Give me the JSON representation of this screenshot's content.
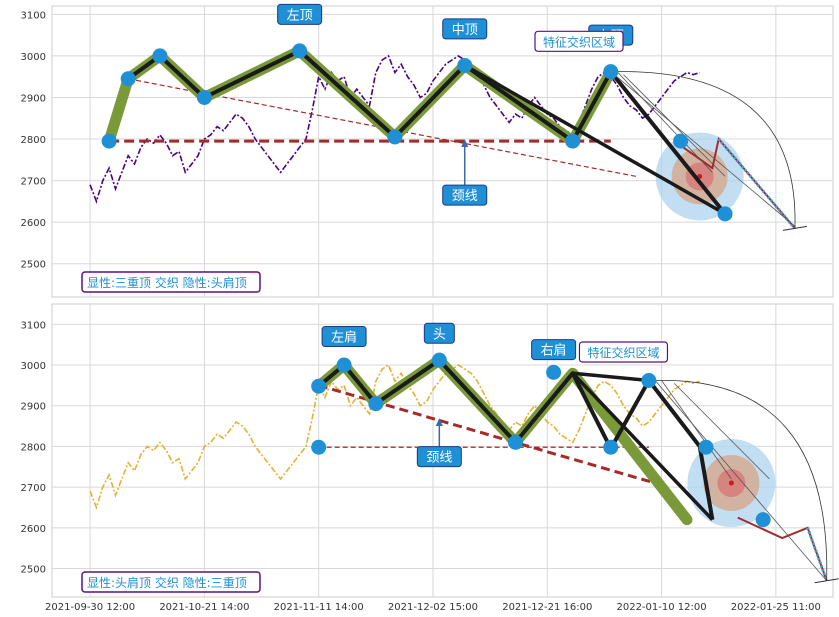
{
  "chart_data": [
    {
      "type": "line",
      "ylim": [
        2420,
        3120
      ],
      "yticks": [
        2500,
        2600,
        2700,
        2800,
        2900,
        3000,
        3100
      ],
      "grid": true,
      "price_color": "#4b0082",
      "price": [
        2690,
        2650,
        2700,
        2730,
        2680,
        2720,
        2760,
        2740,
        2780,
        2800,
        2790,
        2810,
        2790,
        2760,
        2770,
        2720,
        2740,
        2760,
        2800,
        2810,
        2830,
        2820,
        2840,
        2860,
        2850,
        2830,
        2800,
        2780,
        2760,
        2740,
        2720,
        2740,
        2760,
        2780,
        2800,
        2870,
        2950,
        2920,
        2960,
        2940,
        2950,
        2900,
        2920,
        2900,
        2880,
        2960,
        2990,
        3000,
        2960,
        2980,
        2950,
        2930,
        2900,
        2910,
        2940,
        2960,
        2980,
        2990,
        3000,
        2990,
        2980,
        2960,
        2930,
        2900,
        2880,
        2860,
        2840,
        2860,
        2850,
        2880,
        2900,
        2880,
        2860,
        2850,
        2830,
        2820,
        2810,
        2840,
        2880,
        2920,
        2950,
        2960,
        2950,
        2930,
        2900,
        2880,
        2870,
        2850,
        2860,
        2880,
        2900,
        2920,
        2940,
        2950,
        2960,
        2955,
        2960
      ],
      "pattern_line": [
        [
          3,
          2795
        ],
        [
          6,
          2945
        ],
        [
          11,
          3000
        ],
        [
          18,
          2900
        ],
        [
          33,
          3012
        ],
        [
          48,
          2805
        ],
        [
          59,
          2977
        ],
        [
          76,
          2795
        ],
        [
          82,
          2962
        ]
      ],
      "black_legs": [
        [
          6,
          2945
        ],
        [
          11,
          3000
        ],
        [
          18,
          2900
        ],
        [
          33,
          3012
        ],
        [
          48,
          2805
        ],
        [
          59,
          2977
        ],
        [
          76,
          2795
        ],
        [
          82,
          2962
        ],
        [
          100,
          2620
        ]
      ],
      "black_extra": [
        [
          [
            59,
            2977
          ],
          [
            100,
            2620
          ]
        ]
      ],
      "pattern_points": [
        [
          3,
          2795
        ],
        [
          6,
          2945
        ],
        [
          11,
          3000
        ],
        [
          18,
          2900
        ],
        [
          33,
          3012
        ],
        [
          48,
          2805
        ],
        [
          59,
          2977
        ],
        [
          76,
          2795
        ],
        [
          82,
          2962
        ],
        [
          93,
          2795
        ],
        [
          100,
          2620
        ]
      ],
      "neckline": {
        "y": 2795,
        "x_from": 3,
        "x_to": 82,
        "style": "bold"
      },
      "trend_line": [
        [
          6,
          2945
        ],
        [
          86,
          2710
        ]
      ],
      "forecast_main": [
        [
          92,
          2795
        ],
        [
          98,
          2730
        ],
        [
          99,
          2800
        ],
        [
          111,
          2585
        ]
      ],
      "forecast_fan": [
        [
          [
            83,
            2962
          ],
          [
            98,
            2720
          ]
        ],
        [
          [
            84,
            2955
          ],
          [
            100,
            2710
          ]
        ],
        [
          [
            82,
            2962
          ],
          [
            111,
            2590
          ]
        ]
      ],
      "forecast_arc": [
        [
          82,
          2962
        ],
        [
          111,
          2585
        ]
      ],
      "target_circle": {
        "x": 96,
        "y": 2710
      },
      "labels": [
        {
          "text": "左顶",
          "x": 33,
          "y": 3100,
          "arrow_to": 3012
        },
        {
          "text": "中顶",
          "x": 59,
          "y": 3065,
          "arrow_to": 2977
        },
        {
          "text": "右顶",
          "x": 82,
          "y": 3050,
          "arrow_to": 2962
        },
        {
          "text": "颈线",
          "x": 59,
          "y": 2665,
          "arrow_to": 2800,
          "arrow_up": true
        }
      ],
      "feature_label": {
        "text": "特征交织区域",
        "x": 77,
        "y": 3035
      },
      "status": "显性:三重顶 交织 隐性:头肩顶"
    },
    {
      "type": "line",
      "ylim": [
        2430,
        3150
      ],
      "yticks": [
        2500,
        2600,
        2700,
        2800,
        2900,
        3000,
        3100
      ],
      "grid": true,
      "price_color": "#e6b032",
      "price": [
        2690,
        2650,
        2700,
        2730,
        2680,
        2720,
        2760,
        2740,
        2780,
        2800,
        2790,
        2810,
        2790,
        2760,
        2770,
        2720,
        2740,
        2760,
        2800,
        2810,
        2830,
        2820,
        2840,
        2860,
        2850,
        2830,
        2800,
        2780,
        2760,
        2740,
        2720,
        2740,
        2760,
        2780,
        2800,
        2870,
        2950,
        2920,
        2960,
        2940,
        2950,
        2900,
        2920,
        2900,
        2880,
        2960,
        2990,
        3000,
        2960,
        2980,
        2950,
        2930,
        2900,
        2910,
        2940,
        2960,
        2980,
        2990,
        3000,
        2990,
        2980,
        2960,
        2930,
        2900,
        2880,
        2860,
        2840,
        2860,
        2850,
        2880,
        2900,
        2880,
        2860,
        2850,
        2830,
        2820,
        2810,
        2840,
        2880,
        2920,
        2950,
        2960,
        2950,
        2930,
        2900,
        2880,
        2870,
        2850,
        2860,
        2880,
        2900,
        2920,
        2940,
        2950,
        2960,
        2955,
        2960
      ],
      "pattern_line": [
        [
          36,
          2948
        ],
        [
          40,
          3000
        ],
        [
          45,
          2905
        ],
        [
          55,
          3012
        ],
        [
          67,
          2810
        ],
        [
          76,
          2980
        ],
        [
          94,
          2620
        ]
      ],
      "black_legs": [
        [
          36,
          2948
        ],
        [
          40,
          3000
        ],
        [
          45,
          2905
        ],
        [
          55,
          3012
        ],
        [
          67,
          2810
        ],
        [
          76,
          2980
        ],
        [
          82,
          2795
        ],
        [
          88,
          2962
        ],
        [
          96,
          2800
        ],
        [
          98,
          2620
        ]
      ],
      "black_extra": [
        [
          [
            76,
            2980
          ],
          [
            98,
            2620
          ]
        ],
        [
          [
            76,
            2980
          ],
          [
            88,
            2962
          ]
        ]
      ],
      "pattern_points": [
        [
          36,
          2798
        ],
        [
          36,
          2948
        ],
        [
          40,
          3000
        ],
        [
          45,
          2905
        ],
        [
          55,
          3012
        ],
        [
          67,
          2810
        ],
        [
          73,
          2982
        ],
        [
          82,
          2798
        ],
        [
          88,
          2962
        ],
        [
          97,
          2798
        ],
        [
          106,
          2620
        ]
      ],
      "neckline": {
        "y": 2798,
        "x_from": 36,
        "x_to": 88,
        "style": "thin"
      },
      "trend_line": [
        [
          36,
          2950
        ],
        [
          89,
          2710
        ]
      ],
      "forecast_main": [
        [
          102,
          2625
        ],
        [
          109,
          2575
        ],
        [
          113,
          2600
        ],
        [
          116,
          2470
        ]
      ],
      "forecast_fan": [
        [
          [
            90,
            2962
          ],
          [
            101,
            2720
          ]
        ],
        [
          [
            92,
            2955
          ],
          [
            107,
            2720
          ]
        ],
        [
          [
            89,
            2962
          ],
          [
            116,
            2470
          ]
        ]
      ],
      "forecast_arc": [
        [
          89,
          2962
        ],
        [
          116,
          2470
        ]
      ],
      "target_circle": {
        "x": 101,
        "y": 2710
      },
      "labels": [
        {
          "text": "左肩",
          "x": 40,
          "y": 3070,
          "arrow_to": 3000
        },
        {
          "text": "头",
          "x": 55,
          "y": 3078,
          "arrow_to": 3012
        },
        {
          "text": "右肩",
          "x": 73,
          "y": 3038,
          "arrow_to": 2982
        },
        {
          "text": "颈线",
          "x": 55,
          "y": 2775,
          "arrow_to": 2870,
          "arrow_up": true
        }
      ],
      "feature_label": {
        "text": "特征交织区域",
        "x": 84,
        "y": 3032
      },
      "status": "显性:头肩顶 交织 隐性:三重顶"
    }
  ],
  "x_axis": {
    "tick_labels": [
      "2021-09-30 12:00",
      "2021-10-21 14:00",
      "2021-11-11 14:00",
      "2021-12-02 15:00",
      "2021-12-21 16:00",
      "2022-01-10 12:00",
      "2022-01-25 11:00"
    ],
    "tick_index": [
      0,
      18,
      36,
      54,
      72,
      90,
      108
    ],
    "range": [
      -6,
      117
    ]
  },
  "colors": {
    "point": "#1f8fd6",
    "neck": "#a52a2a",
    "band": "#7a9a3a",
    "label_bg": "#1f8fd6",
    "label_border": "#1a3a8a",
    "status_border": "#5a1080",
    "status_text": "#1f8fd6"
  }
}
